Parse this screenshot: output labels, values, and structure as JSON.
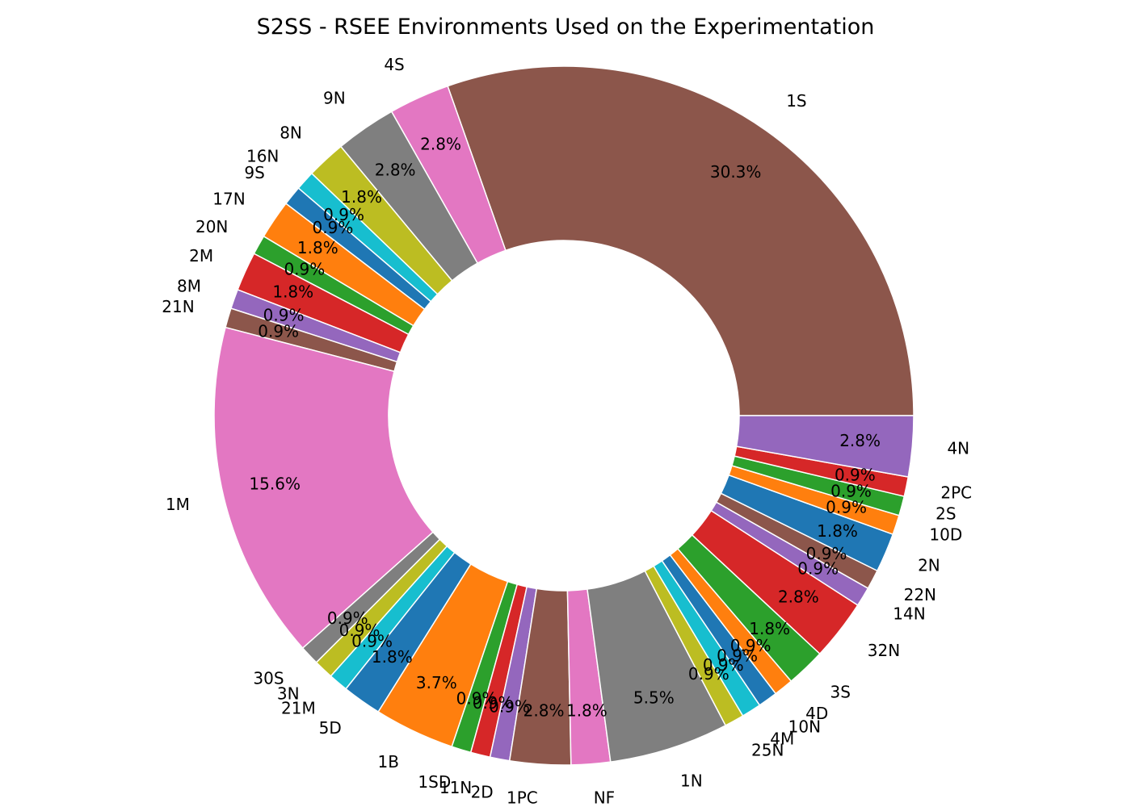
{
  "chart_data": {
    "type": "pie",
    "variant": "donut",
    "title": "S2SS - RSEE Environments Used on the Experimentation",
    "start_angle_deg": 0,
    "direction": "counterclockwise",
    "slices": [
      {
        "label": "1S",
        "value": 30.3,
        "pct_label": "30.3%",
        "color": "#8c564b"
      },
      {
        "label": "4S",
        "value": 2.8,
        "pct_label": "2.8%",
        "color": "#e377c2"
      },
      {
        "label": "9N",
        "value": 2.8,
        "pct_label": "2.8%",
        "color": "#7f7f7f"
      },
      {
        "label": "8N",
        "value": 1.8,
        "pct_label": "1.8%",
        "color": "#bcbd22"
      },
      {
        "label": "16N",
        "value": 0.9,
        "pct_label": "0.9%",
        "color": "#17becf"
      },
      {
        "label": "9S",
        "value": 0.9,
        "pct_label": "0.9%",
        "color": "#1f77b4"
      },
      {
        "label": "17N",
        "value": 1.8,
        "pct_label": "1.8%",
        "color": "#ff7f0e"
      },
      {
        "label": "20N",
        "value": 0.9,
        "pct_label": "0.9%",
        "color": "#2ca02c"
      },
      {
        "label": "2M",
        "value": 1.8,
        "pct_label": "1.8%",
        "color": "#d62728"
      },
      {
        "label": "8M",
        "value": 0.9,
        "pct_label": "0.9%",
        "color": "#9467bd"
      },
      {
        "label": "21N",
        "value": 0.9,
        "pct_label": "0.9%",
        "color": "#8c564b"
      },
      {
        "label": "1M",
        "value": 15.6,
        "pct_label": "15.6%",
        "color": "#e377c2"
      },
      {
        "label": "30S",
        "value": 0.9,
        "pct_label": "0.9%",
        "color": "#7f7f7f"
      },
      {
        "label": "3N",
        "value": 0.9,
        "pct_label": "0.9%",
        "color": "#bcbd22"
      },
      {
        "label": "21M",
        "value": 0.9,
        "pct_label": "0.9%",
        "color": "#17becf"
      },
      {
        "label": "5D",
        "value": 1.8,
        "pct_label": "1.8%",
        "color": "#1f77b4"
      },
      {
        "label": "1B",
        "value": 3.7,
        "pct_label": "3.7%",
        "color": "#ff7f0e"
      },
      {
        "label": "1SD",
        "value": 0.9,
        "pct_label": "0.9%",
        "color": "#2ca02c"
      },
      {
        "label": "11N",
        "value": 0.9,
        "pct_label": "0.9%",
        "color": "#d62728"
      },
      {
        "label": "2D",
        "value": 0.9,
        "pct_label": "0.9%",
        "color": "#9467bd"
      },
      {
        "label": "1PC",
        "value": 2.8,
        "pct_label": "2.8%",
        "color": "#8c564b"
      },
      {
        "label": "NF",
        "value": 1.8,
        "pct_label": "1.8%",
        "color": "#e377c2"
      },
      {
        "label": "1N",
        "value": 5.5,
        "pct_label": "5.5%",
        "color": "#7f7f7f"
      },
      {
        "label": "25N",
        "value": 0.9,
        "pct_label": "0.9%",
        "color": "#bcbd22"
      },
      {
        "label": "4M",
        "value": 0.9,
        "pct_label": "0.9%",
        "color": "#17becf"
      },
      {
        "label": "10N",
        "value": 0.9,
        "pct_label": "0.9%",
        "color": "#1f77b4"
      },
      {
        "label": "4D",
        "value": 0.9,
        "pct_label": "0.9%",
        "color": "#ff7f0e"
      },
      {
        "label": "3S",
        "value": 1.8,
        "pct_label": "1.8%",
        "color": "#2ca02c"
      },
      {
        "label": "32N",
        "value": 2.8,
        "pct_label": "2.8%",
        "color": "#d62728"
      },
      {
        "label": "14N",
        "value": 0.9,
        "pct_label": "0.9%",
        "color": "#9467bd"
      },
      {
        "label": "22N",
        "value": 0.9,
        "pct_label": "0.9%",
        "color": "#8c564b"
      },
      {
        "label": "2N",
        "value": 1.8,
        "pct_label": "1.8%",
        "color": "#1f77b4"
      },
      {
        "label": "10D",
        "value": 0.9,
        "pct_label": "0.9%",
        "color": "#ff7f0e"
      },
      {
        "label": "2S",
        "value": 0.9,
        "pct_label": "0.9%",
        "color": "#2ca02c"
      },
      {
        "label": "2PC",
        "value": 0.9,
        "pct_label": "0.9%",
        "color": "#d62728"
      },
      {
        "label": "4N",
        "value": 2.8,
        "pct_label": "2.8%",
        "color": "#9467bd"
      }
    ]
  }
}
